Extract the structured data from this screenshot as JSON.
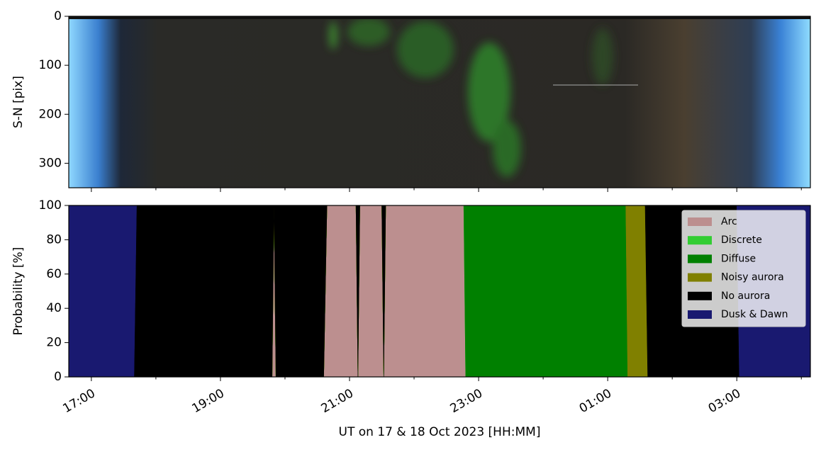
{
  "chart_data": [
    {
      "type": "image",
      "ylabel": "S-N [pix]",
      "ylim": [
        350,
        0
      ],
      "yticks": [
        0,
        100,
        200,
        300
      ],
      "xlim": [
        16.65,
        28.14
      ],
      "xticks": [
        {
          "value": 17,
          "label": "17:00"
        },
        {
          "value": 19,
          "label": "19:00"
        },
        {
          "value": 21,
          "label": "21:00"
        },
        {
          "value": 23,
          "label": "23:00"
        },
        {
          "value": 25,
          "label": "01:00"
        },
        {
          "value": 27,
          "label": "03:00"
        }
      ],
      "xminorticks": [
        18,
        20,
        22,
        24,
        26,
        28
      ]
    },
    {
      "type": "stacked_area",
      "ylabel": "Probability [%]",
      "xlabel": "UT on 17 & 18 Oct 2023 [HH:MM]",
      "ylim": [
        0,
        100
      ],
      "yticks": [
        0,
        20,
        40,
        60,
        80,
        100
      ],
      "xlim": [
        16.65,
        28.14
      ],
      "xticks": [
        {
          "value": 17,
          "label": "17:00"
        },
        {
          "value": 19,
          "label": "19:00"
        },
        {
          "value": 21,
          "label": "21:00"
        },
        {
          "value": 23,
          "label": "23:00"
        },
        {
          "value": 25,
          "label": "01:00"
        },
        {
          "value": 27,
          "label": "03:00"
        }
      ],
      "xminorticks": [
        18,
        20,
        22,
        24,
        26,
        28
      ],
      "legend": "upper right",
      "x": [
        16.65,
        17.66,
        17.7,
        19.8,
        19.83,
        19.86,
        20.6,
        20.65,
        21.1,
        21.13,
        21.16,
        21.5,
        21.53,
        21.56,
        22.77,
        22.8,
        25.28,
        25.31,
        25.58,
        25.62,
        27.0,
        27.04,
        28.14
      ],
      "series": [
        {
          "name": "Arc",
          "color": "#bc8f8f",
          "values": [
            0,
            0,
            0,
            0,
            100,
            0,
            0,
            100,
            100,
            0,
            100,
            100,
            0,
            100,
            100,
            0,
            0,
            0,
            0,
            0,
            0,
            0,
            0
          ]
        },
        {
          "name": "Discrete",
          "color": "#32cd32",
          "values": [
            0,
            0,
            0,
            0,
            0,
            0,
            0,
            0,
            0,
            0,
            0,
            0,
            0,
            0,
            0,
            0,
            0,
            0,
            0,
            0,
            0,
            0,
            0
          ]
        },
        {
          "name": "Diffuse",
          "color": "#008000",
          "values": [
            0,
            0,
            0,
            0,
            0,
            0,
            0,
            0,
            0,
            0,
            0,
            0,
            0,
            0,
            0,
            100,
            100,
            0,
            0,
            0,
            0,
            0,
            0
          ]
        },
        {
          "name": "Noisy aurora",
          "color": "#808000",
          "values": [
            0,
            0,
            0,
            0,
            0,
            0,
            0,
            0,
            0,
            0,
            0,
            0,
            0,
            0,
            0,
            0,
            0,
            100,
            100,
            0,
            0,
            0,
            0
          ]
        },
        {
          "name": "No aurora",
          "color": "#000000",
          "values": [
            0,
            0,
            100,
            100,
            0,
            100,
            100,
            0,
            0,
            100,
            0,
            0,
            100,
            0,
            0,
            0,
            0,
            0,
            0,
            100,
            100,
            0,
            0
          ]
        },
        {
          "name": "Dusk & Dawn",
          "color": "#191970",
          "values": [
            100,
            100,
            0,
            0,
            0,
            0,
            0,
            0,
            0,
            0,
            0,
            0,
            0,
            0,
            0,
            0,
            0,
            0,
            0,
            0,
            0,
            100,
            100
          ]
        }
      ]
    }
  ]
}
